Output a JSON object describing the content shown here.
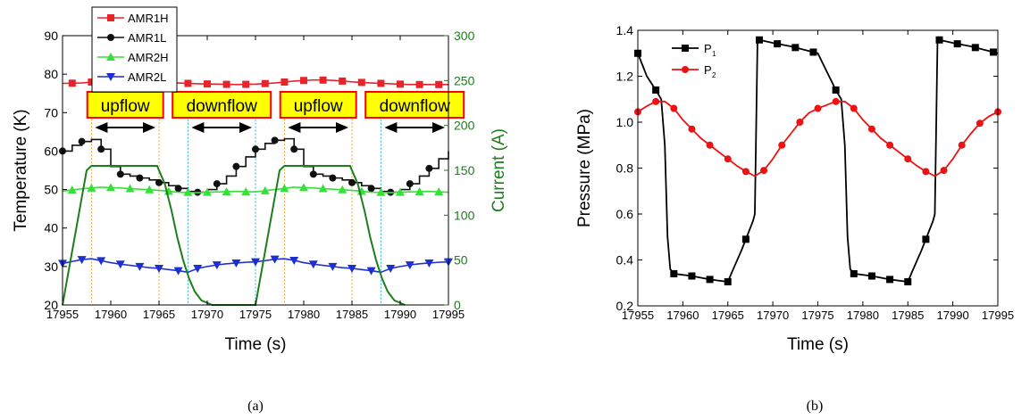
{
  "chart_data": [
    {
      "type": "line",
      "panel_label": "(a)",
      "xlabel": "Time (s)",
      "ylabel": "Temperature (K)",
      "y2label": "Current (A)",
      "xlim": [
        17955,
        17995
      ],
      "ylim": [
        20,
        90
      ],
      "y2lim": [
        0,
        300
      ],
      "xticks": [
        17955,
        17960,
        17965,
        17970,
        17975,
        17980,
        17985,
        17990,
        17995
      ],
      "yticks": [
        20,
        30,
        40,
        50,
        60,
        70,
        80,
        90
      ],
      "y2ticks": [
        0,
        50,
        100,
        150,
        200,
        250,
        300
      ],
      "legend_position": "top-left",
      "series": [
        {
          "name": "AMR1H",
          "color": "#e8232a",
          "marker": "square",
          "x": [
            17955,
            17957,
            17959,
            17961,
            17963,
            17965,
            17967,
            17969,
            17971,
            17973,
            17975,
            17977,
            17979,
            17981,
            17983,
            17985,
            17987,
            17989,
            17991,
            17993,
            17995
          ],
          "values": [
            77.6,
            77.7,
            78.2,
            78.5,
            78.3,
            78.0,
            77.7,
            77.5,
            77.4,
            77.3,
            77.4,
            77.7,
            78.2,
            78.5,
            78.4,
            78.0,
            77.7,
            77.5,
            77.3,
            77.3,
            77.3
          ],
          "markers_x": [
            17956,
            17958,
            17960,
            17962,
            17964,
            17966,
            17968,
            17970,
            17972,
            17974,
            17976,
            17978,
            17980,
            17982,
            17984,
            17986,
            17988,
            17990,
            17992,
            17994
          ]
        },
        {
          "name": "AMR1L",
          "color": "#111111",
          "marker": "circle",
          "x": [
            17955,
            17956,
            17957,
            17958,
            17959,
            17960,
            17961,
            17962,
            17963,
            17964,
            17965,
            17966,
            17967,
            17968,
            17969,
            17970,
            17971,
            17972,
            17973,
            17974,
            17975,
            17976,
            17977,
            17978,
            17979,
            17980,
            17981,
            17982,
            17983,
            17984,
            17985,
            17986,
            17987,
            17988,
            17989,
            17990,
            17991,
            17992,
            17993,
            17994,
            17995
          ],
          "values": [
            60.0,
            61.5,
            62.5,
            63.0,
            60.5,
            56.0,
            54.0,
            53.5,
            53.0,
            52.5,
            51.8,
            51.0,
            50.3,
            49.5,
            49.3,
            50.0,
            51.5,
            53.5,
            56.0,
            58.5,
            60.5,
            62.0,
            62.8,
            63.2,
            60.5,
            56.0,
            54.0,
            53.5,
            53.0,
            52.5,
            51.8,
            51.0,
            50.3,
            49.5,
            49.3,
            50.0,
            51.5,
            53.5,
            55.5,
            58.0,
            60.0
          ],
          "markers_x": [
            17955,
            17957,
            17959,
            17961,
            17963,
            17965,
            17967,
            17969,
            17971,
            17973,
            17975,
            17977,
            17979,
            17981,
            17983,
            17985,
            17987,
            17989,
            17991,
            17993
          ]
        },
        {
          "name": "AMR2H",
          "color": "#35e03a",
          "marker": "triangle-up",
          "x": [
            17955,
            17957,
            17959,
            17961,
            17963,
            17965,
            17967,
            17969,
            17971,
            17973,
            17975,
            17977,
            17979,
            17981,
            17983,
            17985,
            17987,
            17989,
            17991,
            17993,
            17995
          ],
          "values": [
            49.6,
            50.2,
            50.6,
            50.4,
            50.1,
            49.8,
            49.3,
            49.2,
            49.4,
            49.5,
            49.4,
            50.0,
            50.6,
            50.4,
            50.1,
            49.8,
            49.3,
            49.2,
            49.4,
            49.5,
            49.3
          ],
          "markers_x": [
            17956,
            17958,
            17960,
            17962,
            17964,
            17966,
            17968,
            17970,
            17972,
            17974,
            17976,
            17978,
            17980,
            17982,
            17984,
            17986,
            17988,
            17990,
            17992,
            17994
          ]
        },
        {
          "name": "AMR2L",
          "color": "#1e2fd0",
          "marker": "triangle-down",
          "x": [
            17955,
            17956,
            17957,
            17958,
            17959,
            17960,
            17961,
            17962,
            17963,
            17964,
            17965,
            17966,
            17967,
            17968,
            17969,
            17970,
            17971,
            17972,
            17973,
            17974,
            17975,
            17976,
            17977,
            17978,
            17979,
            17980,
            17981,
            17982,
            17983,
            17984,
            17985,
            17986,
            17987,
            17988,
            17989,
            17990,
            17991,
            17992,
            17993,
            17994,
            17995
          ],
          "values": [
            30.8,
            31.3,
            31.8,
            32.0,
            31.5,
            31.0,
            30.6,
            30.3,
            30.0,
            29.7,
            29.5,
            29.2,
            28.9,
            28.5,
            29.5,
            30.0,
            30.4,
            30.7,
            30.9,
            31.1,
            31.2,
            31.5,
            31.9,
            32.0,
            31.6,
            31.0,
            30.6,
            30.3,
            30.0,
            29.7,
            29.5,
            29.2,
            28.9,
            28.5,
            29.5,
            30.0,
            30.4,
            30.7,
            30.9,
            31.1,
            31.2
          ],
          "markers_x": [
            17955,
            17957,
            17959,
            17961,
            17963,
            17965,
            17967,
            17969,
            17971,
            17973,
            17975,
            17977,
            17979,
            17981,
            17983,
            17985,
            17987,
            17989,
            17991,
            17993,
            17995
          ]
        },
        {
          "name": "",
          "axis": "right",
          "color": "#1e7d1e",
          "x": [
            17955,
            17957.5,
            17958,
            17964.8,
            17965.6,
            17966.3,
            17966.9,
            17967.5,
            17968.1,
            17968.7,
            17969.4,
            17970.5,
            17975,
            17977.5,
            17978,
            17984.8,
            17985.6,
            17986.3,
            17986.9,
            17987.5,
            17988.1,
            17988.7,
            17989.4,
            17990.5
          ],
          "values": [
            0,
            150,
            155,
            155,
            135,
            105,
            75,
            50,
            30,
            15,
            5,
            0,
            0,
            150,
            155,
            155,
            135,
            105,
            75,
            50,
            30,
            15,
            5,
            0
          ]
        }
      ],
      "annotations": {
        "flow_labels": [
          {
            "text": "upflow",
            "x_start": 17958,
            "x_end": 17965
          },
          {
            "text": "downflow",
            "x_start": 17968,
            "x_end": 17975
          },
          {
            "text": "upflow",
            "x_start": 17978,
            "x_end": 17985
          },
          {
            "text": "downflow",
            "x_start": 17988,
            "x_end": 17995
          }
        ],
        "label_fill": "#ffff00",
        "label_border": "#ff0000",
        "orange_lines_x": [
          17958,
          17965,
          17978,
          17985
        ],
        "cyan_lines_x": [
          17968,
          17975,
          17988
        ]
      }
    },
    {
      "type": "line",
      "panel_label": "(b)",
      "xlabel": "Time (s)",
      "ylabel": "Pressure (MPa)",
      "xlim": [
        17955,
        17995
      ],
      "ylim": [
        0.2,
        1.4
      ],
      "xticks": [
        17955,
        17960,
        17965,
        17970,
        17975,
        17980,
        17985,
        17990,
        17995
      ],
      "yticks": [
        0.2,
        0.4,
        0.6,
        0.8,
        1.0,
        1.2,
        1.4
      ],
      "legend_position": "top-left",
      "series": [
        {
          "name": "P",
          "name_subscript": "1",
          "color": "#000000",
          "marker": "square",
          "x": [
            17955,
            17956,
            17957,
            17957.6,
            17958.0,
            17958.3,
            17958.6,
            17959,
            17961,
            17963,
            17965,
            17965.6,
            17966.5,
            17967.3,
            17967.8,
            17968.0,
            17968.3,
            17970,
            17972,
            17975,
            17976,
            17977,
            17977.6,
            17978.0,
            17978.3,
            17978.6,
            17979,
            17981,
            17983,
            17985,
            17985.6,
            17986.5,
            17987.3,
            17987.8,
            17988.0,
            17988.3,
            17990,
            17992,
            17995
          ],
          "values": [
            1.3,
            1.2,
            1.14,
            1.1,
            0.9,
            0.5,
            0.36,
            0.34,
            0.33,
            0.315,
            0.305,
            0.36,
            0.44,
            0.52,
            0.57,
            0.6,
            1.36,
            1.345,
            1.33,
            1.3,
            1.22,
            1.14,
            1.1,
            0.9,
            0.5,
            0.36,
            0.34,
            0.33,
            0.315,
            0.305,
            0.36,
            0.44,
            0.52,
            0.57,
            0.6,
            1.36,
            1.345,
            1.33,
            1.3
          ],
          "markers_x": [
            17955,
            17957,
            17959,
            17961,
            17963,
            17965,
            17967,
            17968.5,
            17970.5,
            17972.5,
            17974.5,
            17977,
            17979,
            17981,
            17983,
            17985,
            17987,
            17988.5,
            17990.5,
            17992.5,
            17994.5
          ]
        },
        {
          "name": "P",
          "name_subscript": "2",
          "color": "#ee1111",
          "marker": "circle",
          "x": [
            17955,
            17956,
            17957,
            17958,
            17959,
            17960,
            17961,
            17962,
            17963,
            17964,
            17965,
            17966,
            17967,
            17968,
            17969,
            17970,
            17971,
            17972,
            17973,
            17974,
            17975,
            17976,
            17977,
            17978,
            17979,
            17980,
            17981,
            17982,
            17983,
            17984,
            17985,
            17986,
            17987,
            17988,
            17989,
            17990,
            17991,
            17992,
            17993,
            17994,
            17995
          ],
          "values": [
            1.045,
            1.07,
            1.09,
            1.09,
            1.06,
            1.01,
            0.97,
            0.93,
            0.9,
            0.87,
            0.84,
            0.81,
            0.785,
            0.765,
            0.79,
            0.84,
            0.9,
            0.95,
            1.0,
            1.04,
            1.06,
            1.075,
            1.09,
            1.09,
            1.06,
            1.01,
            0.97,
            0.93,
            0.9,
            0.87,
            0.84,
            0.81,
            0.785,
            0.765,
            0.79,
            0.84,
            0.9,
            0.95,
            0.995,
            1.025,
            1.045
          ],
          "markers_x": [
            17955,
            17957,
            17959,
            17961,
            17963,
            17965,
            17967,
            17969,
            17971,
            17973,
            17975,
            17977,
            17979,
            17981,
            17983,
            17985,
            17987,
            17989,
            17991,
            17993,
            17995
          ]
        }
      ]
    }
  ],
  "colors": {
    "axis": "#000000",
    "right_axis": "#1e7d1e",
    "orange_guides": "#f0a020",
    "cyan_guides": "#20b8d8"
  }
}
